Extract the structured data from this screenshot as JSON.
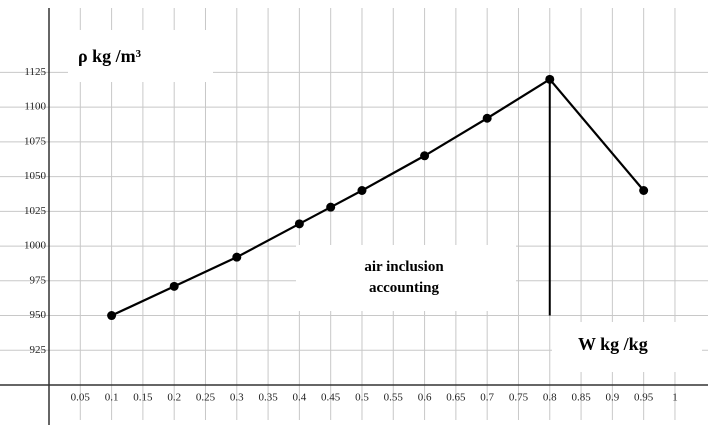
{
  "chart_data": {
    "type": "line",
    "y_label": "ρ kg /m³",
    "x_label": "W kg /kg",
    "annotation": [
      "air inclusion",
      "accounting"
    ],
    "x": [
      0.1,
      0.2,
      0.3,
      0.4,
      0.45,
      0.5,
      0.6,
      0.7,
      0.8,
      0.95
    ],
    "series": [
      {
        "color": "#000000",
        "values": [
          950,
          971,
          992,
          1016,
          1028,
          1040,
          1065,
          1092,
          1120,
          1040
        ]
      }
    ],
    "reference_line": {
      "x": 0.8,
      "y_range": [
        950,
        1120
      ]
    },
    "xlim": [
      0,
      1.04
    ],
    "ylim": [
      900,
      1162
    ],
    "xticks": [
      0.05,
      0.1,
      0.15,
      0.2,
      0.25,
      0.3,
      0.35,
      0.4,
      0.45,
      0.5,
      0.55,
      0.6,
      0.65,
      0.7,
      0.75,
      0.8,
      0.85,
      0.9,
      0.95,
      1
    ],
    "yticks": [
      925,
      950,
      975,
      1000,
      1025,
      1050,
      1075,
      1100,
      1125
    ],
    "grid": true
  }
}
